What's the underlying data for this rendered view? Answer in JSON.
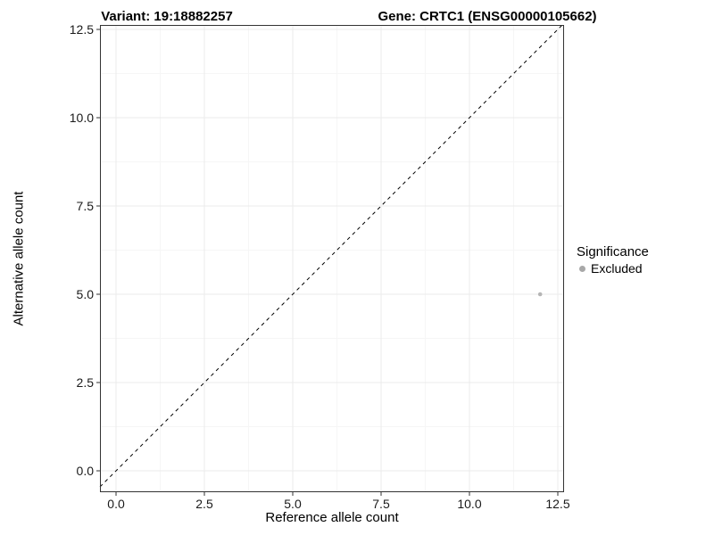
{
  "chart_data": {
    "type": "scatter",
    "title_left": "Variant: 19:18882257",
    "title_right": "Gene: CRTC1 (ENSG00000105662)",
    "xlabel": "Reference allele count",
    "ylabel": "Alternative allele count",
    "xlim": [
      -0.455,
      12.677
    ],
    "ylim": [
      -0.606,
      12.626
    ],
    "x_ticks": [
      0.0,
      2.5,
      5.0,
      7.5,
      10.0,
      12.5
    ],
    "y_ticks": [
      0.0,
      2.5,
      5.0,
      7.5,
      10.0,
      12.5
    ],
    "x_tick_labels": [
      "0.0",
      "2.5",
      "5.0",
      "7.5",
      "10.0",
      "12.5"
    ],
    "y_tick_labels": [
      "0.0",
      "2.5",
      "5.0",
      "7.5",
      "10.0",
      "12.5"
    ],
    "grid": true,
    "reference_line": {
      "type": "identity",
      "style": "dashed",
      "color": "#000000"
    },
    "series": [
      {
        "name": "Excluded",
        "color": "#b5b5b5",
        "point_radius": 2.3,
        "points": [
          {
            "x": 12,
            "y": 5
          }
        ]
      }
    ],
    "legend": {
      "title": "Significance",
      "position": "right",
      "items": [
        {
          "label": "Excluded",
          "color": "#a8a8a8"
        }
      ]
    },
    "colors": {
      "grid_major": "#ebebeb",
      "grid_minor": "#f6f6f6",
      "panel_border": "#333333",
      "tick_mark": "#333333",
      "background": "#ffffff"
    }
  }
}
